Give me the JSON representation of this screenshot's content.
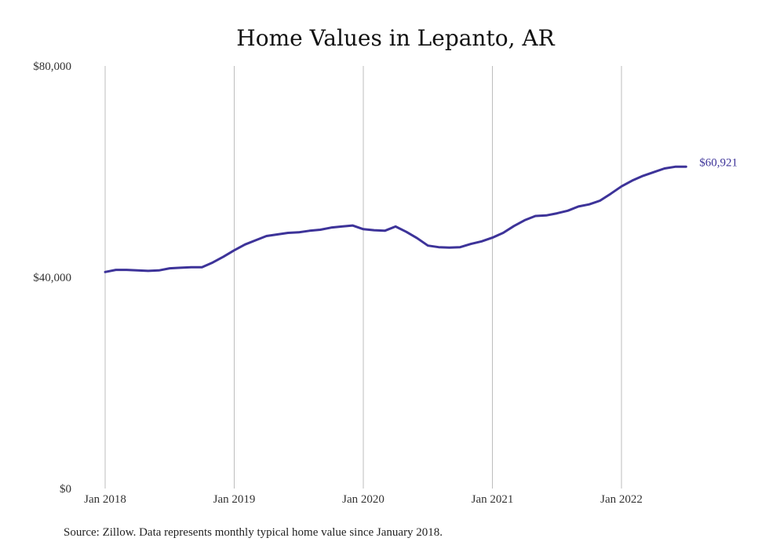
{
  "chart_data": {
    "type": "line",
    "title": "Home Values in Lepanto, AR",
    "xlabel": "",
    "ylabel": "",
    "ylim": [
      0,
      80000
    ],
    "y_ticks": [
      {
        "value": 0,
        "label": "$0"
      },
      {
        "value": 40000,
        "label": "$40,000"
      },
      {
        "value": 80000,
        "label": "$80,000"
      }
    ],
    "x_ticks": [
      {
        "value": "2018-01",
        "label": "Jan 2018"
      },
      {
        "value": "2019-01",
        "label": "Jan 2019"
      },
      {
        "value": "2020-01",
        "label": "Jan 2020"
      },
      {
        "value": "2021-01",
        "label": "Jan 2021"
      },
      {
        "value": "2022-01",
        "label": "Jan 2022"
      }
    ],
    "grid": "vertical",
    "series": [
      {
        "color": "#3d3399",
        "end_label": "$60,921",
        "x": [
          "2018-01",
          "2018-02",
          "2018-03",
          "2018-04",
          "2018-05",
          "2018-06",
          "2018-07",
          "2018-08",
          "2018-09",
          "2018-10",
          "2018-11",
          "2018-12",
          "2019-01",
          "2019-02",
          "2019-03",
          "2019-04",
          "2019-05",
          "2019-06",
          "2019-07",
          "2019-08",
          "2019-09",
          "2019-10",
          "2019-11",
          "2019-12",
          "2020-01",
          "2020-02",
          "2020-03",
          "2020-04",
          "2020-05",
          "2020-06",
          "2020-07",
          "2020-08",
          "2020-09",
          "2020-10",
          "2020-11",
          "2020-12",
          "2021-01",
          "2021-02",
          "2021-03",
          "2021-04",
          "2021-05",
          "2021-06",
          "2021-07",
          "2021-08",
          "2021-09",
          "2021-10",
          "2021-11",
          "2021-12",
          "2022-01",
          "2022-02",
          "2022-03",
          "2022-04",
          "2022-05",
          "2022-06",
          "2022-07"
        ],
        "values": [
          41000,
          41400,
          41400,
          41300,
          41200,
          41300,
          41700,
          41800,
          41900,
          41900,
          42800,
          43900,
          45100,
          46200,
          47000,
          47800,
          48100,
          48400,
          48500,
          48800,
          49000,
          49400,
          49600,
          49800,
          49100,
          48900,
          48800,
          49600,
          48600,
          47400,
          46000,
          45700,
          45600,
          45700,
          46300,
          46800,
          47500,
          48400,
          49700,
          50800,
          51600,
          51700,
          52100,
          52600,
          53400,
          53800,
          54500,
          55800,
          57200,
          58300,
          59200,
          59900,
          60600,
          60921,
          60921
        ]
      }
    ]
  },
  "source_note": "Source: Zillow. Data represents monthly typical home value since January 2018."
}
